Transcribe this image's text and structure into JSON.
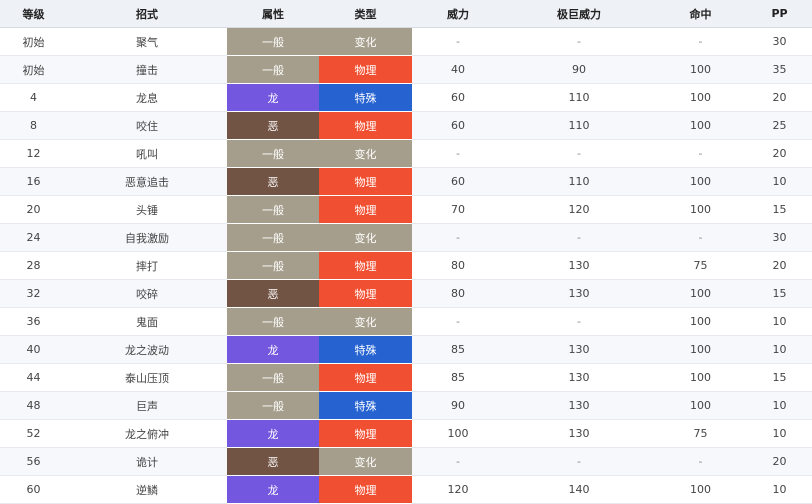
{
  "columns": [
    "等级",
    "招式",
    "属性",
    "类型",
    "威力",
    "极巨威力",
    "命中",
    "PP"
  ],
  "type_colors": {
    "一般": "#a59e8c",
    "龙": "#7457df",
    "恶": "#725445",
    "变化": "#a59e8c",
    "物理": "#f05031",
    "特殊": "#2663d1"
  },
  "rows": [
    {
      "level": "初始",
      "move": "聚气",
      "type": "一般",
      "category": "变化",
      "power": "-",
      "max_power": "-",
      "accuracy": "-",
      "pp": "30"
    },
    {
      "level": "初始",
      "move": "撞击",
      "type": "一般",
      "category": "物理",
      "power": "40",
      "max_power": "90",
      "accuracy": "100",
      "pp": "35"
    },
    {
      "level": "4",
      "move": "龙息",
      "type": "龙",
      "category": "特殊",
      "power": "60",
      "max_power": "110",
      "accuracy": "100",
      "pp": "20"
    },
    {
      "level": "8",
      "move": "咬住",
      "type": "恶",
      "category": "物理",
      "power": "60",
      "max_power": "110",
      "accuracy": "100",
      "pp": "25"
    },
    {
      "level": "12",
      "move": "吼叫",
      "type": "一般",
      "category": "变化",
      "power": "-",
      "max_power": "-",
      "accuracy": "-",
      "pp": "20"
    },
    {
      "level": "16",
      "move": "恶意追击",
      "type": "恶",
      "category": "物理",
      "power": "60",
      "max_power": "110",
      "accuracy": "100",
      "pp": "10"
    },
    {
      "level": "20",
      "move": "头锤",
      "type": "一般",
      "category": "物理",
      "power": "70",
      "max_power": "120",
      "accuracy": "100",
      "pp": "15"
    },
    {
      "level": "24",
      "move": "自我激励",
      "type": "一般",
      "category": "变化",
      "power": "-",
      "max_power": "-",
      "accuracy": "-",
      "pp": "30"
    },
    {
      "level": "28",
      "move": "摔打",
      "type": "一般",
      "category": "物理",
      "power": "80",
      "max_power": "130",
      "accuracy": "75",
      "pp": "20"
    },
    {
      "level": "32",
      "move": "咬碎",
      "type": "恶",
      "category": "物理",
      "power": "80",
      "max_power": "130",
      "accuracy": "100",
      "pp": "15"
    },
    {
      "level": "36",
      "move": "鬼面",
      "type": "一般",
      "category": "变化",
      "power": "-",
      "max_power": "-",
      "accuracy": "100",
      "pp": "10"
    },
    {
      "level": "40",
      "move": "龙之波动",
      "type": "龙",
      "category": "特殊",
      "power": "85",
      "max_power": "130",
      "accuracy": "100",
      "pp": "10"
    },
    {
      "level": "44",
      "move": "泰山压顶",
      "type": "一般",
      "category": "物理",
      "power": "85",
      "max_power": "130",
      "accuracy": "100",
      "pp": "15"
    },
    {
      "level": "48",
      "move": "巨声",
      "type": "一般",
      "category": "特殊",
      "power": "90",
      "max_power": "130",
      "accuracy": "100",
      "pp": "10"
    },
    {
      "level": "52",
      "move": "龙之俯冲",
      "type": "龙",
      "category": "物理",
      "power": "100",
      "max_power": "130",
      "accuracy": "75",
      "pp": "10"
    },
    {
      "level": "56",
      "move": "诡计",
      "type": "恶",
      "category": "变化",
      "power": "-",
      "max_power": "-",
      "accuracy": "-",
      "pp": "20"
    },
    {
      "level": "60",
      "move": "逆鳞",
      "type": "龙",
      "category": "物理",
      "power": "120",
      "max_power": "140",
      "accuracy": "100",
      "pp": "10"
    }
  ]
}
